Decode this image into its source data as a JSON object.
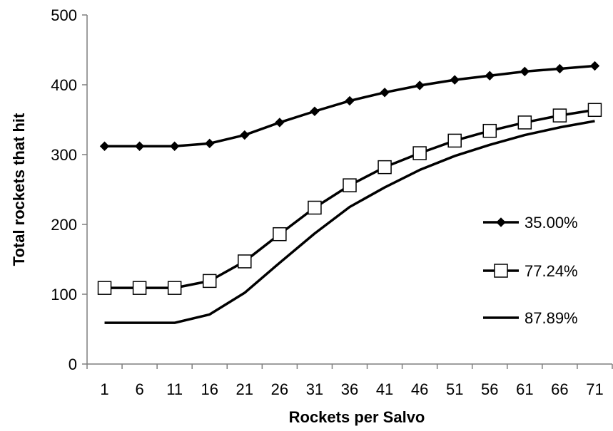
{
  "chart_data": {
    "type": "line",
    "title": "",
    "xlabel": "Rockets per Salvo",
    "ylabel": "Total rockets that hit",
    "x": [
      1,
      6,
      11,
      16,
      21,
      26,
      31,
      36,
      41,
      46,
      51,
      56,
      61,
      66,
      71
    ],
    "ylim": [
      0,
      500
    ],
    "yticks": [
      0,
      100,
      200,
      300,
      400,
      500
    ],
    "grid": false,
    "legend_position": "right",
    "series": [
      {
        "name": "35.00%",
        "marker": "diamond-filled",
        "color": "#000000",
        "values": [
          312,
          312,
          312,
          316,
          328,
          346,
          362,
          377,
          389,
          399,
          407,
          413,
          419,
          423,
          427
        ]
      },
      {
        "name": "77.24%",
        "marker": "square-open",
        "color": "#000000",
        "values": [
          109,
          109,
          109,
          119,
          147,
          186,
          224,
          256,
          282,
          302,
          320,
          334,
          346,
          356,
          364
        ]
      },
      {
        "name": "87.89%",
        "marker": "none",
        "color": "#000000",
        "values": [
          59,
          59,
          59,
          71,
          102,
          145,
          187,
          225,
          253,
          278,
          298,
          314,
          328,
          339,
          348
        ]
      }
    ]
  }
}
